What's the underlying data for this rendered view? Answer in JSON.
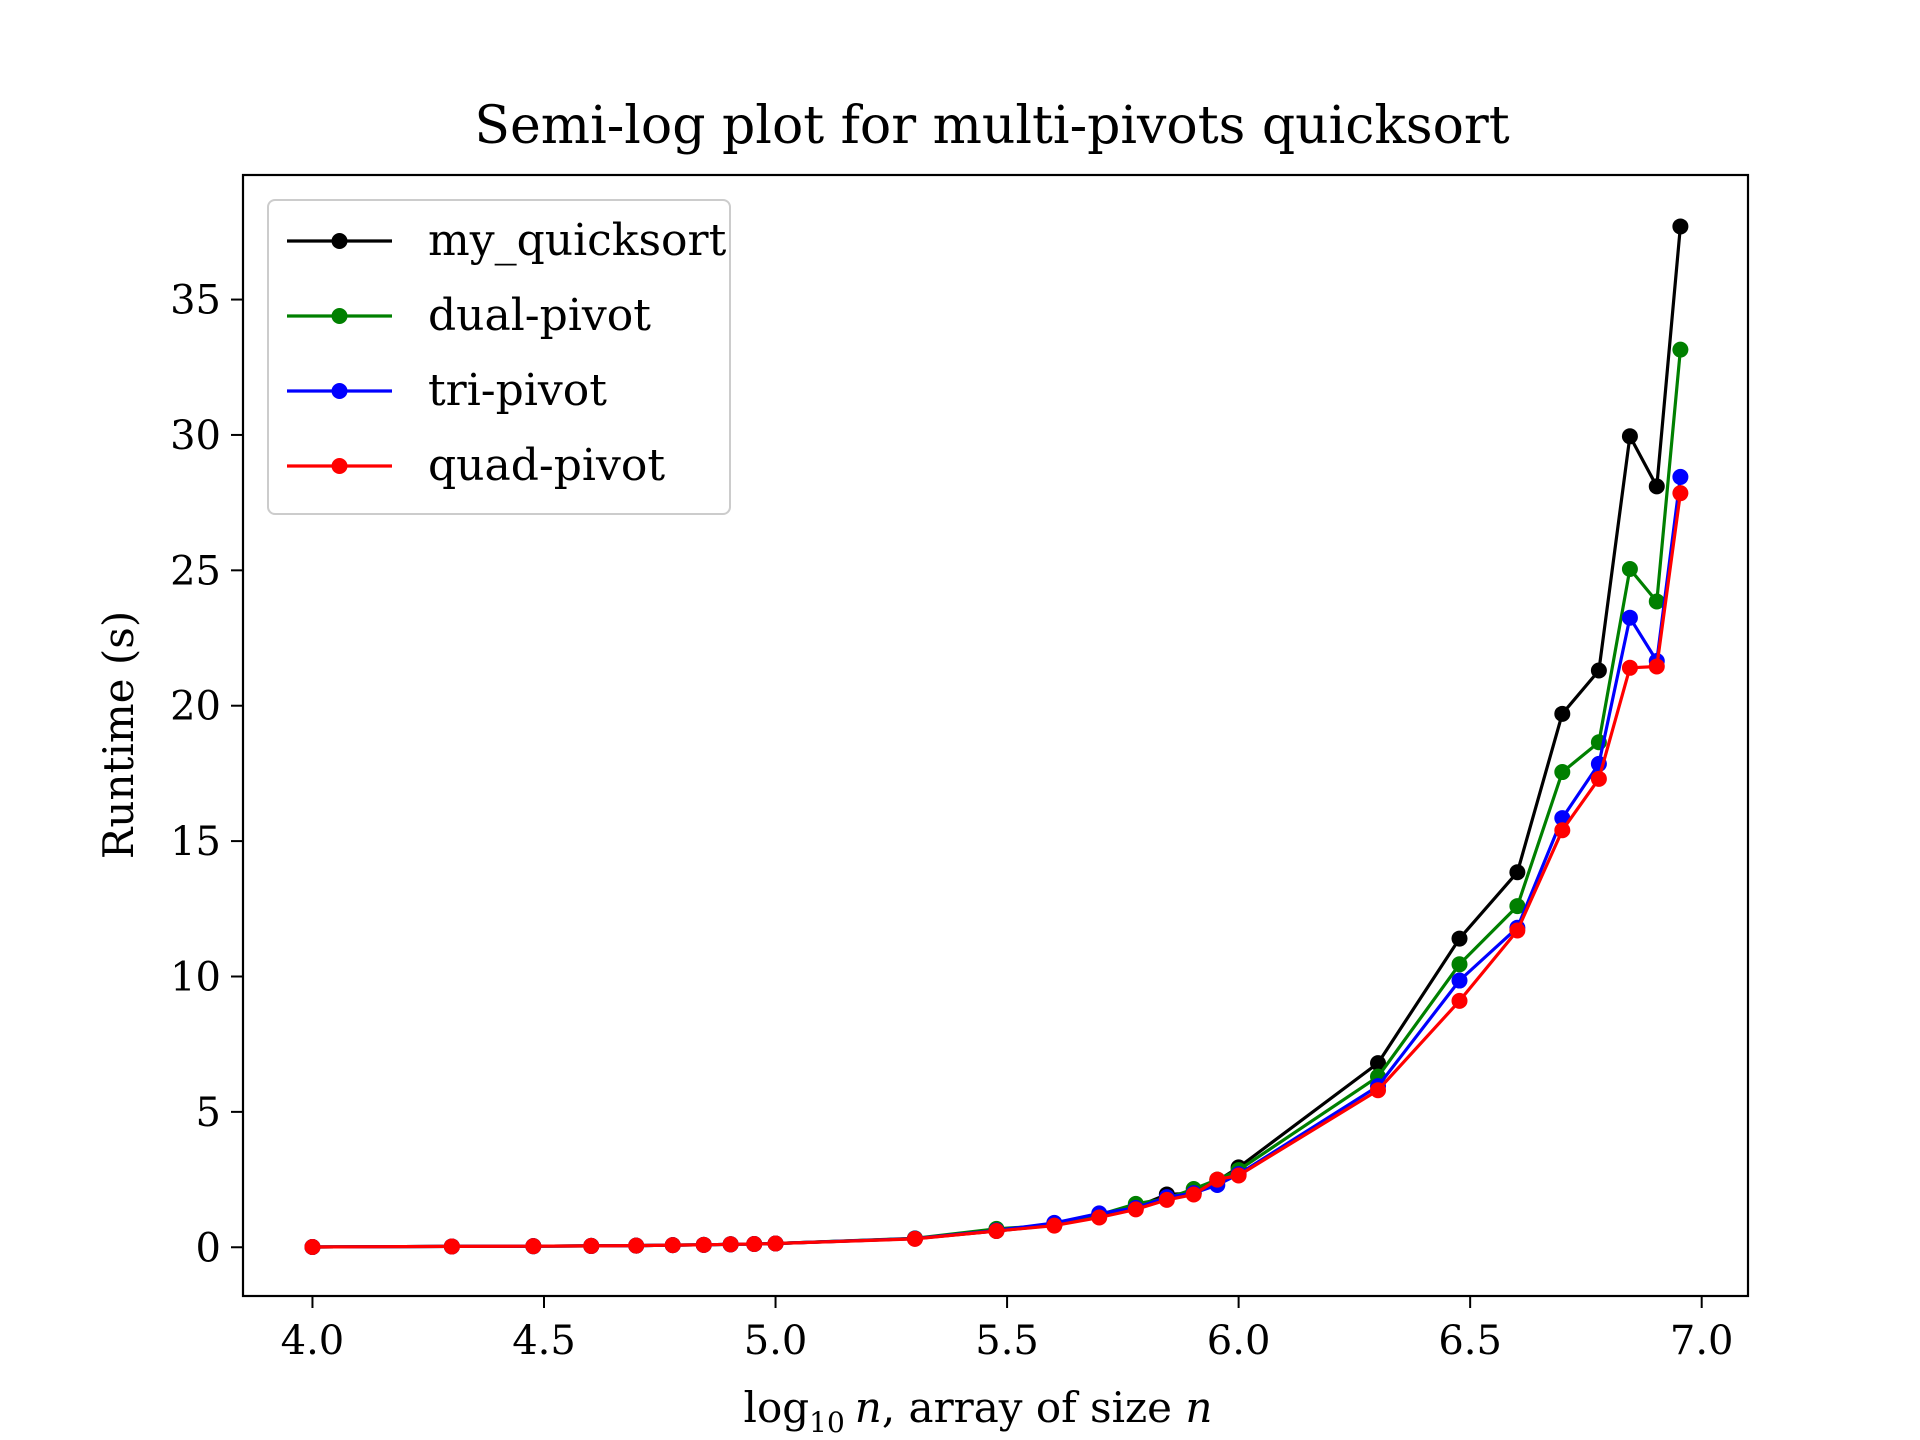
{
  "chart_data": {
    "type": "line",
    "title": "Semi-log plot for multi-pivots quicksort",
    "xlabel": {
      "prefix": "log",
      "subscript": "10",
      "italic_var": "n",
      "suffix": ", array of size ",
      "suffix_var": "n"
    },
    "ylabel": "Runtime (s)",
    "xlim": [
      3.85,
      7.1
    ],
    "ylim": [
      -1.8,
      39.6
    ],
    "xticks": [
      4.0,
      4.5,
      5.0,
      5.5,
      6.0,
      6.5,
      7.0
    ],
    "xtick_labels": [
      "4.0",
      "4.5",
      "5.0",
      "5.5",
      "6.0",
      "6.5",
      "7.0"
    ],
    "yticks": [
      0,
      5,
      10,
      15,
      20,
      25,
      30,
      35
    ],
    "ytick_labels": [
      "0",
      "5",
      "10",
      "15",
      "20",
      "25",
      "30",
      "35"
    ],
    "grid": false,
    "legend_position": "top-left",
    "x": [
      4.0,
      4.301,
      4.477,
      4.602,
      4.699,
      4.778,
      4.845,
      4.903,
      4.954,
      5.0,
      5.301,
      5.477,
      5.602,
      5.699,
      5.778,
      5.845,
      5.903,
      5.954,
      6.0,
      6.301,
      6.477,
      6.602,
      6.699,
      6.778,
      6.845,
      6.903,
      6.954
    ],
    "series": [
      {
        "name": "my_quicksort",
        "color": "#000000",
        "values": [
          0.01,
          0.03,
          0.04,
          0.05,
          0.06,
          0.08,
          0.09,
          0.11,
          0.12,
          0.14,
          0.32,
          0.6,
          0.82,
          1.2,
          1.48,
          1.95,
          2.0,
          2.45,
          2.95,
          6.8,
          11.4,
          13.85,
          19.7,
          21.3,
          29.95,
          28.1,
          37.7
        ]
      },
      {
        "name": "dual-pivot",
        "color": "#008000",
        "values": [
          0.01,
          0.03,
          0.04,
          0.05,
          0.06,
          0.08,
          0.09,
          0.11,
          0.12,
          0.14,
          0.33,
          0.68,
          0.82,
          1.2,
          1.6,
          1.8,
          2.15,
          2.5,
          2.85,
          6.3,
          10.45,
          12.6,
          17.55,
          18.65,
          25.05,
          23.85,
          33.15
        ]
      },
      {
        "name": "tri-pivot",
        "color": "#0000ff",
        "values": [
          0.01,
          0.03,
          0.04,
          0.05,
          0.06,
          0.08,
          0.09,
          0.11,
          0.12,
          0.14,
          0.32,
          0.62,
          0.9,
          1.25,
          1.45,
          1.85,
          2.0,
          2.3,
          2.7,
          5.95,
          9.85,
          11.8,
          15.85,
          17.85,
          23.25,
          21.65,
          28.45
        ]
      },
      {
        "name": "quad-pivot",
        "color": "#ff0000",
        "values": [
          0.01,
          0.03,
          0.04,
          0.05,
          0.06,
          0.08,
          0.09,
          0.11,
          0.12,
          0.14,
          0.31,
          0.6,
          0.8,
          1.1,
          1.4,
          1.75,
          1.95,
          2.5,
          2.65,
          5.8,
          9.1,
          11.7,
          15.4,
          17.3,
          21.4,
          21.45,
          27.85
        ]
      }
    ]
  }
}
